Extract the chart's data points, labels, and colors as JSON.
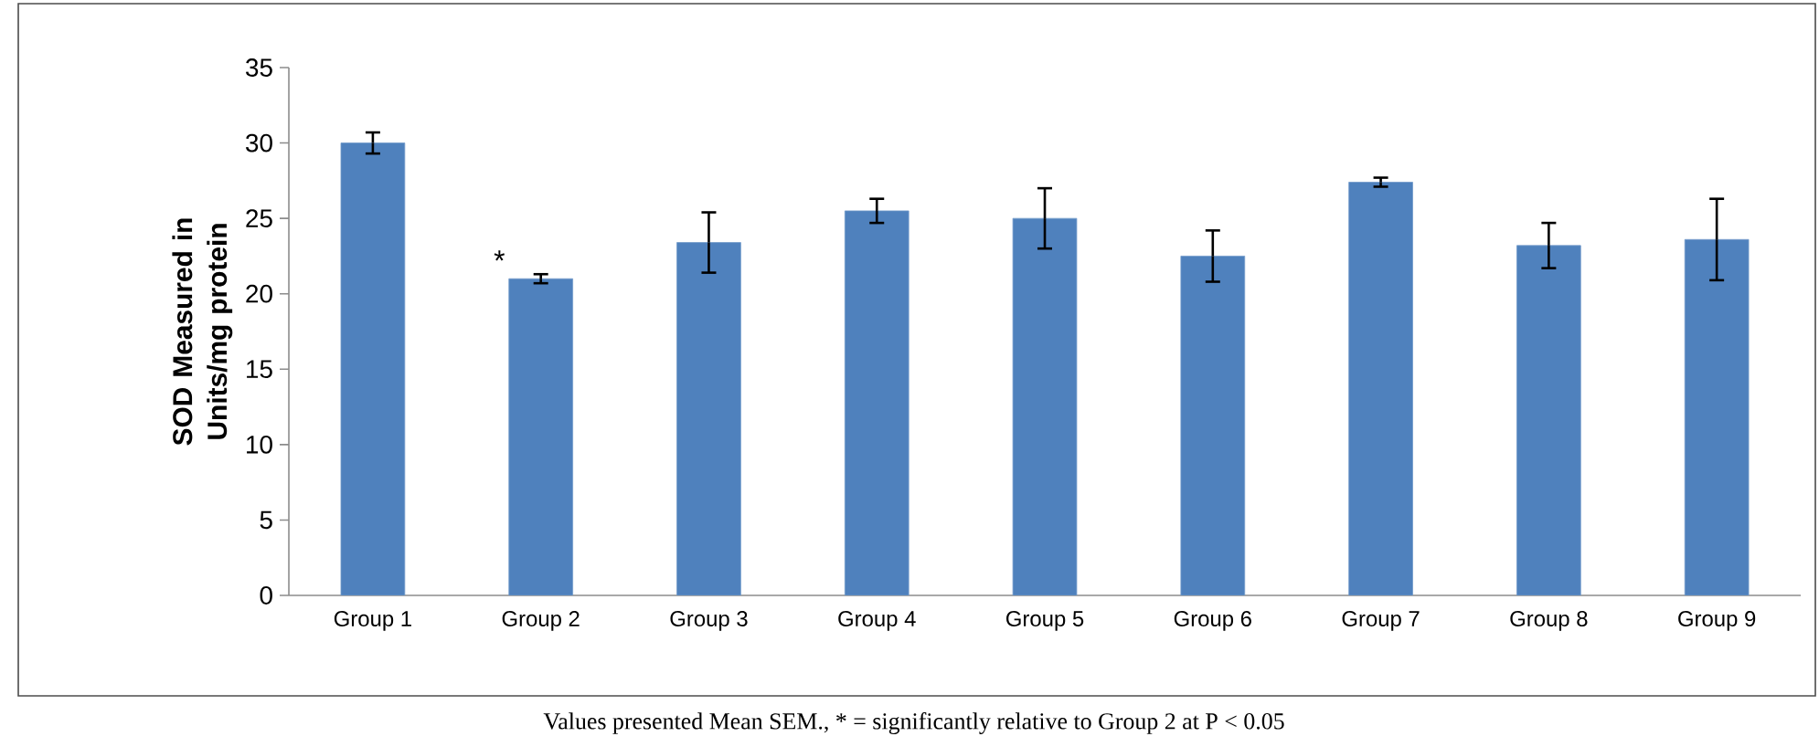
{
  "chart_data": {
    "type": "bar",
    "ylabel": "SOD Measured in Units/mg protein",
    "categories": [
      "Group 1",
      "Group 2",
      "Group 3",
      "Group 4",
      "Group 5",
      "Group 6",
      "Group 7",
      "Group 8",
      "Group 9"
    ],
    "values": [
      30.0,
      21.0,
      23.4,
      25.5,
      25.0,
      22.5,
      27.4,
      23.2,
      23.6
    ],
    "errors": [
      0.7,
      0.3,
      2.0,
      0.8,
      2.0,
      1.7,
      0.3,
      1.5,
      2.7
    ],
    "color": "#4f81bd",
    "ylim": [
      0,
      35
    ],
    "yticks": [
      0,
      5,
      10,
      15,
      20,
      25,
      30,
      35
    ],
    "annotations": [
      {
        "text": "*",
        "x": "Group 2",
        "y": 21.4
      },
      "Values presented Mean SEM., * = significantly relative to Group 2 at P < 0.05"
    ]
  }
}
